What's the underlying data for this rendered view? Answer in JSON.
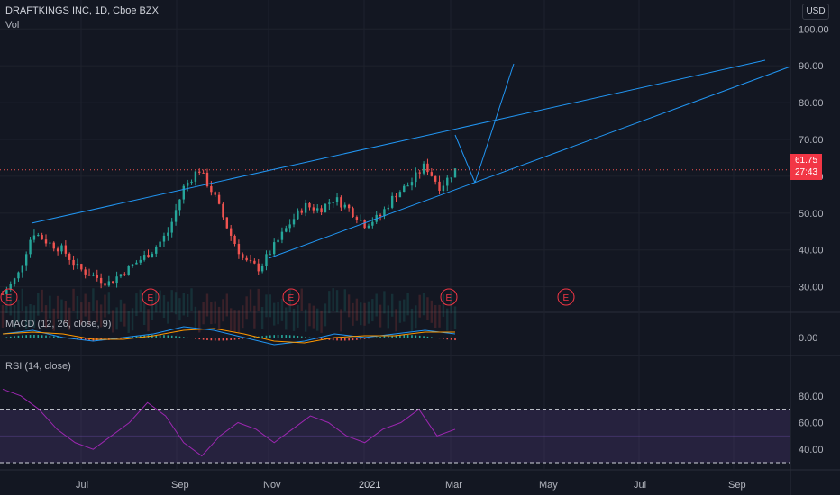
{
  "header": {
    "title": "DRAFTKINGS INC, 1D, Cboe BZX",
    "volume_label": "Vol",
    "currency": "USD"
  },
  "indicators": {
    "macd_label": "MACD (12, 26, close, 9)",
    "rsi_label": "RSI (14, close)"
  },
  "last_price": {
    "value": "61.75",
    "countdown": "27:43"
  },
  "colors": {
    "bull": "#26a69a",
    "bear": "#ef5350",
    "trendline": "#2196f3",
    "macd": "#2196f3",
    "signal": "#ff9800",
    "rsi": "#9c27b0",
    "rsi_band": "#7e57c2",
    "earnings": "#f23645"
  },
  "chart_data": [
    {
      "type": "candlestick",
      "title": "DRAFTKINGS INC, 1D, Cboe BZX",
      "x_ticks": [
        "Jul",
        "Sep",
        "Nov",
        "2021",
        "Mar",
        "May",
        "Jul",
        "Sep"
      ],
      "y_ticks": [
        30,
        40,
        50,
        60,
        70,
        80,
        90,
        100
      ],
      "ylim": [
        26,
        103
      ],
      "last_price": 61.75,
      "earnings_markers": [
        "E",
        "E",
        "E",
        "E",
        "E"
      ],
      "closes_approx": [
        28,
        33,
        45,
        42,
        40,
        35,
        33,
        31,
        34,
        37,
        40,
        45,
        57,
        62,
        55,
        45,
        37,
        35,
        41,
        47,
        52,
        51,
        54,
        51,
        47,
        49,
        55,
        58,
        63,
        57,
        61.75
      ],
      "trendlines": [
        {
          "from": [
            "May 2020",
            45
          ],
          "to": [
            "Sep 2021",
            89
          ]
        },
        {
          "from": [
            "Nov 2020",
            35
          ],
          "to": [
            "Oct 2021",
            88
          ]
        },
        {
          "from": [
            "Mar 2021",
            56
          ],
          "to": [
            "Apr 2021",
            88
          ]
        }
      ]
    },
    {
      "type": "line",
      "title": "MACD (12, 26, close, 9)",
      "y_ticks": [
        0.0
      ],
      "series": [
        {
          "values": [
            1,
            2,
            0,
            -1,
            0,
            1,
            3,
            2,
            0,
            -2,
            -1,
            1,
            0,
            1,
            2,
            1
          ]
        }
      ]
    },
    {
      "type": "line",
      "title": "RSI (14, close)",
      "y_ticks": [
        40,
        60,
        80
      ],
      "bands": [
        30,
        70
      ],
      "series": [
        {
          "values": [
            85,
            80,
            70,
            55,
            45,
            40,
            50,
            60,
            75,
            65,
            45,
            35,
            50,
            60,
            55,
            45,
            55,
            65,
            60,
            50,
            45,
            55,
            60,
            70,
            50,
            55
          ]
        }
      ]
    }
  ]
}
